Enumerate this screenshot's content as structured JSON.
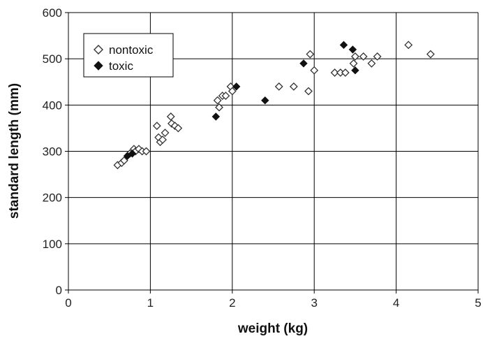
{
  "chart_data": {
    "type": "scatter",
    "xlabel": "weight (kg)",
    "ylabel": "standard length (mm)",
    "xlim": [
      0,
      5
    ],
    "ylim": [
      0,
      600
    ],
    "x_ticks": [
      0,
      1,
      2,
      3,
      4,
      5
    ],
    "y_ticks": [
      0,
      100,
      200,
      300,
      400,
      500,
      600
    ],
    "grid": true,
    "legend_position": "top-left",
    "series": [
      {
        "name": "nontoxic",
        "marker": "open-diamond",
        "color": "#333333",
        "points": [
          [
            0.6,
            270
          ],
          [
            0.65,
            275
          ],
          [
            0.68,
            280
          ],
          [
            0.75,
            295
          ],
          [
            0.8,
            305
          ],
          [
            0.82,
            300
          ],
          [
            0.86,
            305
          ],
          [
            0.9,
            300
          ],
          [
            0.95,
            300
          ],
          [
            1.08,
            355
          ],
          [
            1.1,
            330
          ],
          [
            1.12,
            320
          ],
          [
            1.15,
            325
          ],
          [
            1.18,
            340
          ],
          [
            1.25,
            375
          ],
          [
            1.26,
            360
          ],
          [
            1.3,
            355
          ],
          [
            1.34,
            350
          ],
          [
            1.82,
            410
          ],
          [
            1.84,
            395
          ],
          [
            1.88,
            420
          ],
          [
            1.92,
            420
          ],
          [
            1.98,
            440
          ],
          [
            2.0,
            430
          ],
          [
            2.57,
            440
          ],
          [
            2.75,
            440
          ],
          [
            2.93,
            430
          ],
          [
            2.95,
            510
          ],
          [
            3.0,
            475
          ],
          [
            3.25,
            470
          ],
          [
            3.32,
            470
          ],
          [
            3.38,
            470
          ],
          [
            3.48,
            490
          ],
          [
            3.5,
            505
          ],
          [
            3.6,
            505
          ],
          [
            3.7,
            490
          ],
          [
            3.77,
            505
          ],
          [
            4.15,
            530
          ],
          [
            4.42,
            510
          ]
        ]
      },
      {
        "name": "toxic",
        "marker": "filled-diamond",
        "color": "#111111",
        "points": [
          [
            0.72,
            290
          ],
          [
            0.78,
            295
          ],
          [
            1.8,
            375
          ],
          [
            2.05,
            440
          ],
          [
            2.4,
            410
          ],
          [
            2.87,
            490
          ],
          [
            3.36,
            530
          ],
          [
            3.47,
            520
          ],
          [
            3.5,
            475
          ]
        ]
      }
    ]
  }
}
